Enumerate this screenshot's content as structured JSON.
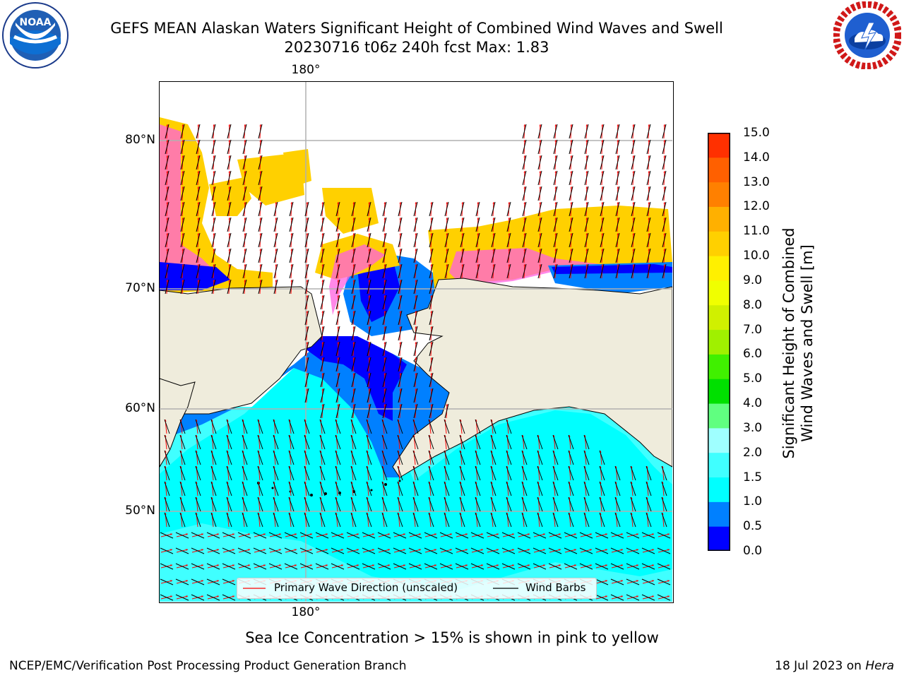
{
  "header": {
    "title_line1": "GEFS MEAN Alaskan Waters Significant Height of Combined Wind Waves and Swell",
    "title_line2": "20230716 t06z 240h fcst   Max: 1.83"
  },
  "logos": {
    "left": {
      "name": "NOAA",
      "text": "NOAA",
      "ring_text": "NATIONAL OCEANIC AND ATMOSPHERIC ADMINISTRATION · U.S. DEPARTMENT OF COMMERCE"
    },
    "right": {
      "name": "National Weather Service",
      "ring_text": "NATIONAL WEATHER SERVICE"
    }
  },
  "map": {
    "lon_label_top": "180°",
    "lon_label_bottom": "180°",
    "lat_labels": [
      "80°N",
      "70°N",
      "60°N",
      "50°N"
    ],
    "colors": {
      "land": "#efecdc",
      "coast": "#000000",
      "grid": "#b0b0b0",
      "ocean_white": "#ffffff"
    }
  },
  "colorbar": {
    "label_line1": "Significant Height of Combined",
    "label_line2": "Wind Waves and Swell [m]",
    "ticks": [
      "15.0",
      "14.0",
      "13.0",
      "12.0",
      "11.0",
      "10.0",
      "9.0",
      "8.0",
      "7.0",
      "6.0",
      "5.0",
      "4.0",
      "3.0",
      "2.0",
      "1.5",
      "1.0",
      "0.5",
      "0.0"
    ],
    "colors_bottom_to_top": [
      "#0000ff",
      "#0080ff",
      "#00ffff",
      "#40ffff",
      "#9fffff",
      "#60ff80",
      "#00e000",
      "#40f000",
      "#a0f000",
      "#d0f000",
      "#f0ff00",
      "#fff000",
      "#ffd000",
      "#ffb000",
      "#ff8000",
      "#ff6000",
      "#ff3000"
    ]
  },
  "legend": {
    "wave_label": "Primary Wave Direction (unscaled)",
    "barb_label": "Wind Barbs",
    "wave_color": "#ff0000",
    "barb_color": "#000000"
  },
  "footer": {
    "note": "Sea Ice Concentration > 15% is shown in pink to yellow",
    "credit": "NCEP/EMC/Verification Post Processing Product Generation Branch",
    "date_text": "18 Jul 2023",
    "on_text": "on",
    "machine": "Hera"
  }
}
